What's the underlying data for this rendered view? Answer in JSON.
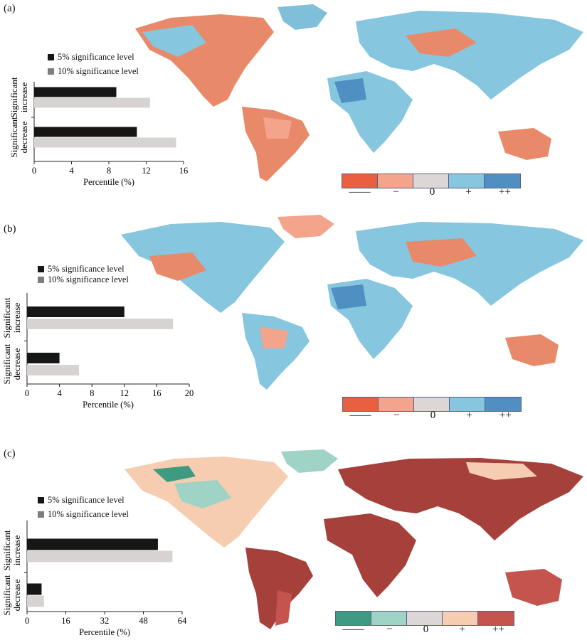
{
  "panels": [
    {
      "label": "(a)",
      "legend": [
        "5% significance level",
        "10% significance level"
      ],
      "categories": [
        "Significant increase",
        "Significant decrease"
      ],
      "xlabel": "Percentile (%)",
      "colorbar_labels": [
        "——",
        "−",
        "0",
        "+",
        "++"
      ],
      "colorbar_colors": [
        "#e8603f",
        "#f3a48a",
        "#dcd6d6",
        "#86c6df",
        "#4f8fc2"
      ]
    },
    {
      "label": "(b)",
      "legend": [
        "5% significance level",
        "10% significance level"
      ],
      "categories": [
        "Significant increase",
        "Significant decrease"
      ],
      "xlabel": "Percentile (%)",
      "colorbar_labels": [
        "——",
        "−",
        "0",
        "+",
        "++"
      ],
      "colorbar_colors": [
        "#e8603f",
        "#f3a48a",
        "#dcd6d6",
        "#86c6df",
        "#4f8fc2"
      ]
    },
    {
      "label": "(c)",
      "legend": [
        "5% significance level",
        "10% significance level"
      ],
      "categories": [
        "Significant increase",
        "Significant decrease"
      ],
      "xlabel": "Percentile (%)",
      "colorbar_labels": [
        "——",
        "−",
        "0",
        "+",
        "++"
      ],
      "colorbar_colors": [
        "#3e9a80",
        "#9fd3c5",
        "#dcd6d6",
        "#f6cdb0",
        "#c5544f"
      ]
    }
  ],
  "colors": {
    "five_pct": "#161616",
    "ten_pct_bar": "#d8d3d3",
    "ten_pct_marker": "#7d7d7d",
    "land_neutral": "#c8d6e0"
  },
  "chart_data": [
    {
      "type": "bar",
      "orientation": "horizontal",
      "categories": [
        "Significant increase",
        "Significant decrease"
      ],
      "series": [
        {
          "name": "5% significance level",
          "values": [
            8.8,
            11.0
          ]
        },
        {
          "name": "10% significance level",
          "values": [
            12.4,
            15.2
          ]
        }
      ],
      "xlabel": "Percentile (%)",
      "xlim": [
        0,
        16
      ],
      "xticks": [
        0,
        4,
        8,
        12,
        16
      ]
    },
    {
      "type": "bar",
      "orientation": "horizontal",
      "categories": [
        "Significant increase",
        "Significant decrease"
      ],
      "series": [
        {
          "name": "5% significance level",
          "values": [
            12.0,
            4.0
          ]
        },
        {
          "name": "10% significance level",
          "values": [
            18.0,
            6.4
          ]
        }
      ],
      "xlabel": "Percentile (%)",
      "xlim": [
        0,
        20
      ],
      "xticks": [
        0,
        4,
        8,
        12,
        16,
        20
      ]
    },
    {
      "type": "bar",
      "orientation": "horizontal",
      "categories": [
        "Significant increase",
        "Significant decrease"
      ],
      "series": [
        {
          "name": "5% significance level",
          "values": [
            54.0,
            6.0
          ]
        },
        {
          "name": "10% significance level",
          "values": [
            60.0,
            7.0
          ]
        }
      ],
      "xlabel": "Percentile (%)",
      "xlim": [
        0,
        64
      ],
      "xticks": [
        0,
        16,
        32,
        48,
        64
      ]
    }
  ]
}
